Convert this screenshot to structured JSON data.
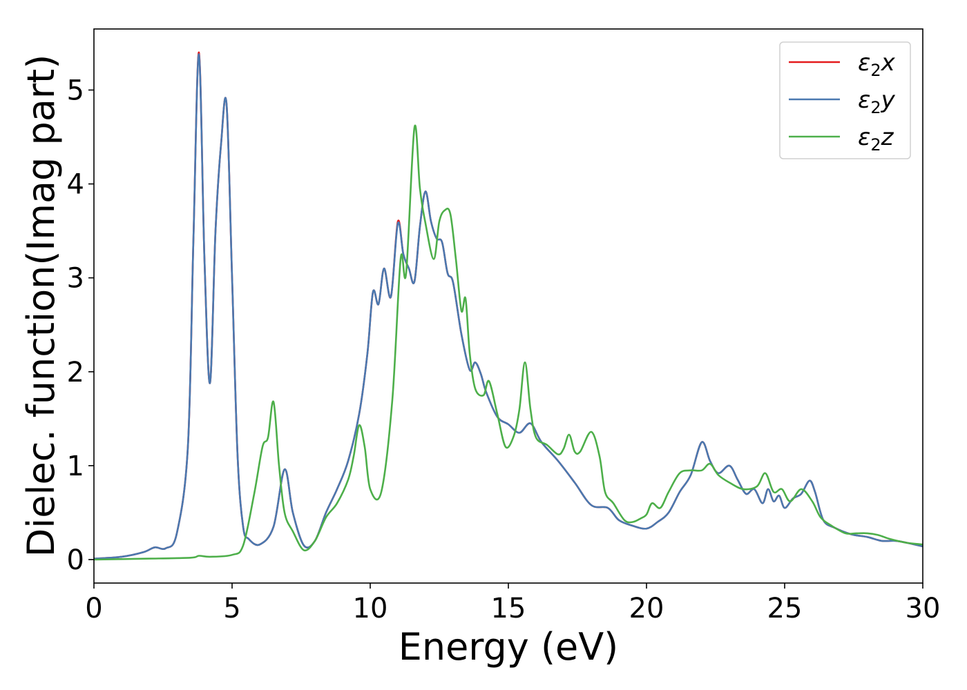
{
  "chart_data": {
    "type": "line",
    "title": "",
    "xlabel": "Energy (eV)",
    "ylabel": "Dielec. function(Imag part)",
    "xlim": [
      0,
      30
    ],
    "ylim": [
      -0.25,
      5.65
    ],
    "xticks": [
      0,
      5,
      10,
      15,
      20,
      25,
      30
    ],
    "yticks": [
      0,
      1,
      2,
      3,
      4,
      5
    ],
    "grid": false,
    "legend_position": "top-right",
    "series": [
      {
        "name_base": "ε",
        "name_sub": "2",
        "name_suffix": "x",
        "color": "#e41a1c",
        "x": [
          0,
          1,
          1.8,
          2.2,
          2.6,
          3,
          3.4,
          3.6,
          3.8,
          4,
          4.2,
          4.4,
          4.6,
          4.8,
          5,
          5.2,
          5.4,
          5.6,
          6,
          6.5,
          6.9,
          7.2,
          7.6,
          8,
          8.4,
          8.8,
          9.2,
          9.6,
          9.9,
          10.1,
          10.3,
          10.5,
          10.75,
          11,
          11.2,
          11.4,
          11.6,
          11.8,
          12,
          12.2,
          12.4,
          12.6,
          12.8,
          13,
          13.3,
          13.6,
          13.8,
          14,
          14.2,
          14.6,
          15,
          15.4,
          15.8,
          16.2,
          16.8,
          17.4,
          18,
          18.6,
          19,
          19.5,
          20,
          20.4,
          20.8,
          21.2,
          21.6,
          22,
          22.3,
          22.6,
          23,
          23.3,
          23.6,
          23.9,
          24.2,
          24.4,
          24.6,
          24.8,
          25,
          25.3,
          25.6,
          25.9,
          26.1,
          26.4,
          26.8,
          27.4,
          28,
          28.5,
          29,
          29.4,
          30
        ],
        "y": [
          0.01,
          0.03,
          0.08,
          0.13,
          0.12,
          0.28,
          1.2,
          3.4,
          5.4,
          3.2,
          1.88,
          3.5,
          4.42,
          4.85,
          3.0,
          1.1,
          0.35,
          0.22,
          0.16,
          0.35,
          0.96,
          0.5,
          0.15,
          0.2,
          0.5,
          0.75,
          1.05,
          1.55,
          2.2,
          2.85,
          2.72,
          3.1,
          2.8,
          3.6,
          3.25,
          3.1,
          2.96,
          3.55,
          3.92,
          3.6,
          3.42,
          3.38,
          3.05,
          2.95,
          2.4,
          2.02,
          2.1,
          1.98,
          1.78,
          1.52,
          1.44,
          1.35,
          1.45,
          1.25,
          1.05,
          0.82,
          0.58,
          0.55,
          0.42,
          0.36,
          0.33,
          0.4,
          0.5,
          0.72,
          0.9,
          1.25,
          1.05,
          0.92,
          1.0,
          0.85,
          0.7,
          0.75,
          0.6,
          0.75,
          0.62,
          0.68,
          0.55,
          0.65,
          0.7,
          0.84,
          0.72,
          0.42,
          0.34,
          0.27,
          0.24,
          0.2,
          0.2,
          0.18,
          0.14
        ]
      },
      {
        "name_base": "ε",
        "name_sub": "2",
        "name_suffix": "y",
        "color": "#4a79b0",
        "x": [
          0,
          1,
          1.8,
          2.2,
          2.6,
          3,
          3.4,
          3.6,
          3.8,
          4,
          4.2,
          4.4,
          4.6,
          4.8,
          5,
          5.2,
          5.4,
          5.6,
          6,
          6.5,
          6.9,
          7.2,
          7.6,
          8,
          8.4,
          8.8,
          9.2,
          9.6,
          9.9,
          10.1,
          10.3,
          10.5,
          10.75,
          11,
          11.2,
          11.4,
          11.6,
          11.8,
          12,
          12.2,
          12.4,
          12.6,
          12.8,
          13,
          13.3,
          13.6,
          13.8,
          14,
          14.2,
          14.6,
          15,
          15.4,
          15.8,
          16.2,
          16.8,
          17.4,
          18,
          18.6,
          19,
          19.5,
          20,
          20.4,
          20.8,
          21.2,
          21.6,
          22,
          22.3,
          22.6,
          23,
          23.3,
          23.6,
          23.9,
          24.2,
          24.4,
          24.6,
          24.8,
          25,
          25.3,
          25.6,
          25.9,
          26.1,
          26.4,
          26.8,
          27.4,
          28,
          28.5,
          29,
          29.4,
          30
        ],
        "y": [
          0.01,
          0.03,
          0.08,
          0.13,
          0.12,
          0.28,
          1.2,
          3.4,
          5.38,
          3.2,
          1.88,
          3.5,
          4.42,
          4.85,
          3.0,
          1.1,
          0.35,
          0.22,
          0.16,
          0.35,
          0.96,
          0.5,
          0.15,
          0.2,
          0.5,
          0.75,
          1.05,
          1.55,
          2.2,
          2.85,
          2.72,
          3.1,
          2.8,
          3.58,
          3.25,
          3.1,
          2.96,
          3.55,
          3.92,
          3.6,
          3.42,
          3.38,
          3.05,
          2.95,
          2.4,
          2.02,
          2.1,
          1.98,
          1.78,
          1.52,
          1.44,
          1.35,
          1.45,
          1.25,
          1.05,
          0.82,
          0.58,
          0.55,
          0.42,
          0.36,
          0.33,
          0.4,
          0.5,
          0.72,
          0.9,
          1.25,
          1.05,
          0.92,
          1.0,
          0.85,
          0.7,
          0.75,
          0.6,
          0.75,
          0.62,
          0.68,
          0.55,
          0.65,
          0.7,
          0.84,
          0.72,
          0.42,
          0.34,
          0.27,
          0.24,
          0.2,
          0.2,
          0.18,
          0.14
        ]
      },
      {
        "name_base": "ε",
        "name_sub": "2",
        "name_suffix": "z",
        "color": "#4daf4a",
        "x": [
          0,
          2,
          3.5,
          3.8,
          4.2,
          5,
          5.4,
          5.8,
          6.1,
          6.3,
          6.5,
          6.7,
          6.9,
          7.2,
          7.6,
          8,
          8.4,
          8.8,
          9.2,
          9.4,
          9.6,
          9.8,
          10,
          10.4,
          10.8,
          11.1,
          11.3,
          11.6,
          11.8,
          12,
          12.3,
          12.5,
          12.7,
          12.9,
          13.1,
          13.3,
          13.45,
          13.6,
          13.8,
          14.1,
          14.3,
          14.6,
          14.9,
          15.2,
          15.4,
          15.6,
          15.8,
          16,
          16.4,
          16.8,
          17,
          17.2,
          17.4,
          17.6,
          18,
          18.3,
          18.5,
          18.8,
          19.2,
          19.5,
          19.8,
          20,
          20.2,
          20.5,
          20.8,
          21.2,
          21.6,
          22,
          22.3,
          22.6,
          23,
          23.5,
          24,
          24.3,
          24.6,
          24.9,
          25.2,
          25.6,
          26,
          26.3,
          26.7,
          27.2,
          27.6,
          28,
          28.4,
          28.8,
          29.4,
          30
        ],
        "y": [
          0,
          0.01,
          0.02,
          0.04,
          0.03,
          0.05,
          0.15,
          0.7,
          1.2,
          1.3,
          1.68,
          1.0,
          0.5,
          0.3,
          0.1,
          0.2,
          0.45,
          0.6,
          0.85,
          1.1,
          1.43,
          1.2,
          0.75,
          0.72,
          1.7,
          3.2,
          3.05,
          4.6,
          3.95,
          3.58,
          3.2,
          3.6,
          3.72,
          3.68,
          3.2,
          2.65,
          2.78,
          2.2,
          1.82,
          1.75,
          1.9,
          1.55,
          1.2,
          1.32,
          1.6,
          2.1,
          1.6,
          1.3,
          1.22,
          1.12,
          1.18,
          1.33,
          1.15,
          1.15,
          1.36,
          1.1,
          0.72,
          0.6,
          0.42,
          0.4,
          0.44,
          0.48,
          0.6,
          0.55,
          0.72,
          0.92,
          0.95,
          0.95,
          1.02,
          0.9,
          0.82,
          0.75,
          0.78,
          0.92,
          0.72,
          0.75,
          0.62,
          0.75,
          0.62,
          0.45,
          0.36,
          0.28,
          0.28,
          0.28,
          0.26,
          0.22,
          0.18,
          0.16
        ]
      }
    ]
  }
}
